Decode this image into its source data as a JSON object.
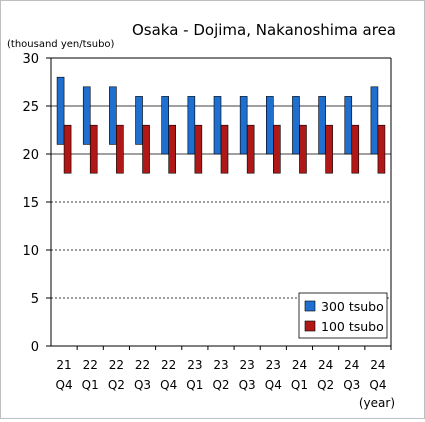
{
  "chart_data": {
    "type": "bar",
    "title": "Osaka - Dojima, Nakanoshima area",
    "ylabel": "(thousand yen/tsubo)",
    "xlabel": "(year)",
    "ylim": [
      0,
      30
    ],
    "yticks": [
      "0",
      "5",
      "10",
      "15",
      "20",
      "25",
      "30"
    ],
    "categories": [
      {
        "year": "21",
        "quarter": "Q4"
      },
      {
        "year": "22",
        "quarter": "Q1"
      },
      {
        "year": "22",
        "quarter": "Q2"
      },
      {
        "year": "22",
        "quarter": "Q3"
      },
      {
        "year": "22",
        "quarter": "Q4"
      },
      {
        "year": "23",
        "quarter": "Q1"
      },
      {
        "year": "23",
        "quarter": "Q2"
      },
      {
        "year": "23",
        "quarter": "Q3"
      },
      {
        "year": "23",
        "quarter": "Q4"
      },
      {
        "year": "24",
        "quarter": "Q1"
      },
      {
        "year": "24",
        "quarter": "Q2"
      },
      {
        "year": "24",
        "quarter": "Q3"
      },
      {
        "year": "24",
        "quarter": "Q4"
      }
    ],
    "series": [
      {
        "name": "300 tsubo",
        "color": "#1f6fd1",
        "low": [
          21,
          21,
          21,
          21,
          20,
          20,
          20,
          20,
          20,
          20,
          20,
          20,
          20
        ],
        "high": [
          28,
          27,
          27,
          26,
          26,
          26,
          26,
          26,
          26,
          26,
          26,
          26,
          27
        ]
      },
      {
        "name": "100 tsubo",
        "color": "#b01818",
        "low": [
          18,
          18,
          18,
          18,
          18,
          18,
          18,
          18,
          18,
          18,
          18,
          18,
          18
        ],
        "high": [
          23,
          23,
          23,
          23,
          23,
          23,
          23,
          23,
          23,
          23,
          23,
          23,
          23
        ]
      }
    ],
    "grid": true,
    "legend_position": "bottom-right"
  }
}
